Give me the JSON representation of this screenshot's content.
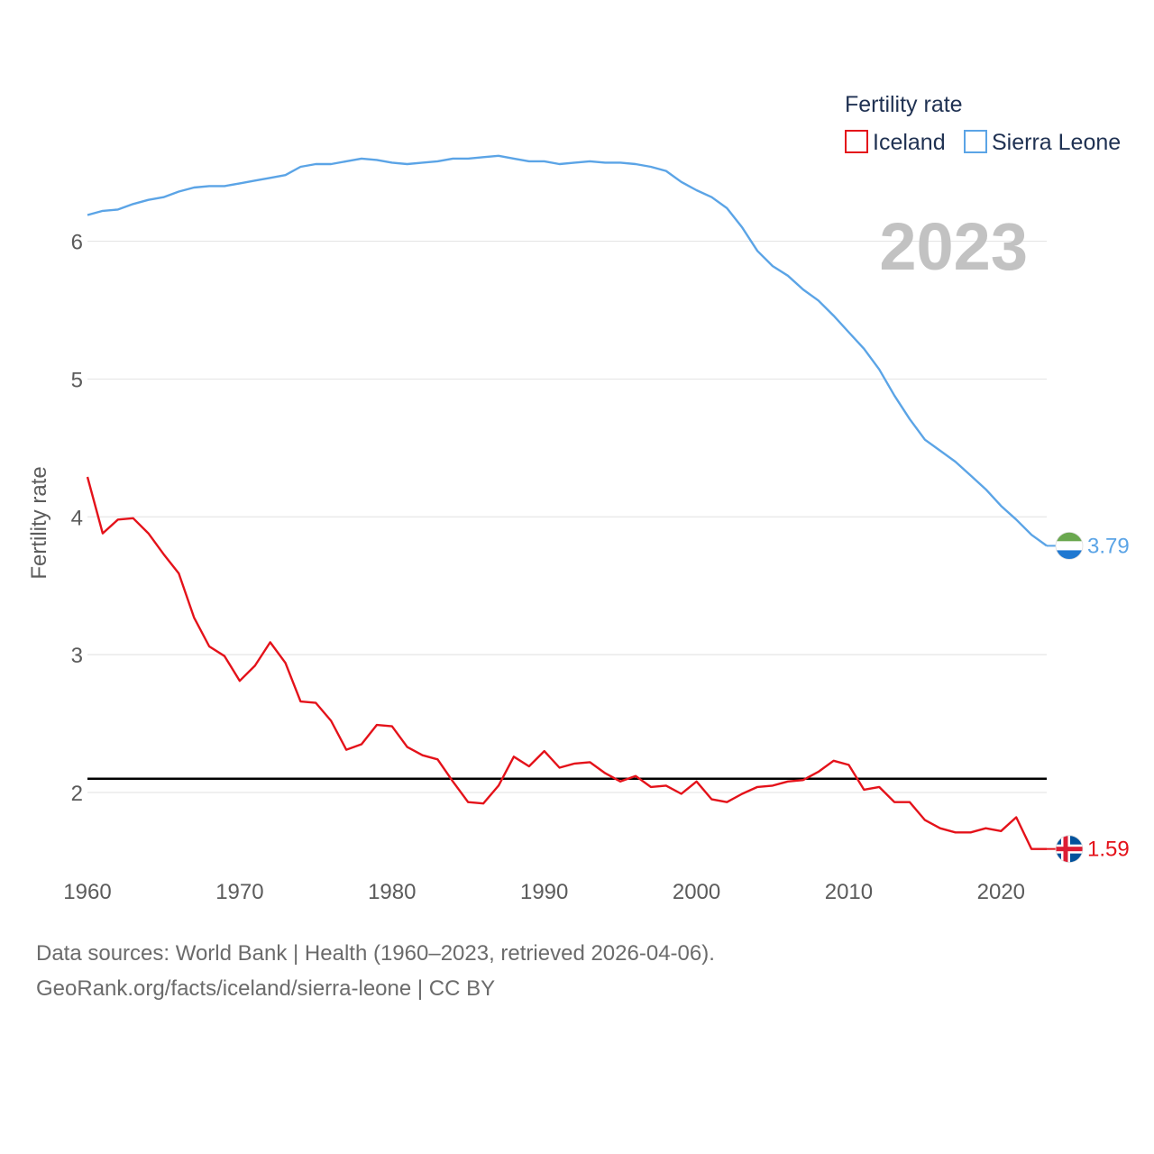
{
  "chart_data": {
    "type": "line",
    "title": "",
    "xlabel": "",
    "ylabel": "Fertility rate",
    "xlim": [
      1960,
      2023
    ],
    "ylim": [
      1.3,
      6.9
    ],
    "x_ticks": [
      1960,
      1970,
      1980,
      1990,
      2000,
      2010,
      2020
    ],
    "y_ticks": [
      2,
      3,
      4,
      5,
      6
    ],
    "reference_line": {
      "value": 2.1,
      "color": "#000000"
    },
    "legend": {
      "title": "Fertility rate",
      "placement": "top-right"
    },
    "year_label": "2023",
    "series": [
      {
        "name": "Iceland",
        "color": "#e4121a",
        "end_label": "1.59",
        "flag": "iceland-flag-icon",
        "x": [
          1960,
          1961,
          1962,
          1963,
          1964,
          1965,
          1966,
          1967,
          1968,
          1969,
          1970,
          1971,
          1972,
          1973,
          1974,
          1975,
          1976,
          1977,
          1978,
          1979,
          1980,
          1981,
          1982,
          1983,
          1984,
          1985,
          1986,
          1987,
          1988,
          1989,
          1990,
          1991,
          1992,
          1993,
          1994,
          1995,
          1996,
          1997,
          1998,
          1999,
          2000,
          2001,
          2002,
          2003,
          2004,
          2005,
          2006,
          2007,
          2008,
          2009,
          2010,
          2011,
          2012,
          2013,
          2014,
          2015,
          2016,
          2017,
          2018,
          2019,
          2020,
          2021,
          2022,
          2023
        ],
        "values": [
          4.29,
          3.88,
          3.98,
          3.99,
          3.88,
          3.73,
          3.59,
          3.27,
          3.06,
          2.99,
          2.81,
          2.92,
          3.09,
          2.94,
          2.66,
          2.65,
          2.52,
          2.31,
          2.35,
          2.49,
          2.48,
          2.33,
          2.27,
          2.24,
          2.08,
          1.93,
          1.92,
          2.05,
          2.26,
          2.19,
          2.3,
          2.18,
          2.21,
          2.22,
          2.14,
          2.08,
          2.12,
          2.04,
          2.05,
          1.99,
          2.08,
          1.95,
          1.93,
          1.99,
          2.04,
          2.05,
          2.08,
          2.09,
          2.15,
          2.23,
          2.2,
          2.02,
          2.04,
          1.93,
          1.93,
          1.8,
          1.74,
          1.71,
          1.71,
          1.74,
          1.72,
          1.82,
          1.59,
          1.59
        ]
      },
      {
        "name": "Sierra Leone",
        "color": "#5ba4e6",
        "end_label": "3.79",
        "flag": "sierra-leone-flag-icon",
        "x": [
          1960,
          1961,
          1962,
          1963,
          1964,
          1965,
          1966,
          1967,
          1968,
          1969,
          1970,
          1971,
          1972,
          1973,
          1974,
          1975,
          1976,
          1977,
          1978,
          1979,
          1980,
          1981,
          1982,
          1983,
          1984,
          1985,
          1986,
          1987,
          1988,
          1989,
          1990,
          1991,
          1992,
          1993,
          1994,
          1995,
          1996,
          1997,
          1998,
          1999,
          2000,
          2001,
          2002,
          2003,
          2004,
          2005,
          2006,
          2007,
          2008,
          2009,
          2010,
          2011,
          2012,
          2013,
          2014,
          2015,
          2016,
          2017,
          2018,
          2019,
          2020,
          2021,
          2022,
          2023
        ],
        "values": [
          6.19,
          6.22,
          6.23,
          6.27,
          6.3,
          6.32,
          6.36,
          6.39,
          6.4,
          6.4,
          6.42,
          6.44,
          6.46,
          6.48,
          6.54,
          6.56,
          6.56,
          6.58,
          6.6,
          6.59,
          6.57,
          6.56,
          6.57,
          6.58,
          6.6,
          6.6,
          6.61,
          6.62,
          6.6,
          6.58,
          6.58,
          6.56,
          6.57,
          6.58,
          6.57,
          6.57,
          6.56,
          6.54,
          6.51,
          6.43,
          6.37,
          6.32,
          6.24,
          6.1,
          5.93,
          5.82,
          5.75,
          5.65,
          5.57,
          5.46,
          5.34,
          5.22,
          5.07,
          4.88,
          4.71,
          4.56,
          4.48,
          4.4,
          4.3,
          4.2,
          4.08,
          3.98,
          3.87,
          3.79
        ]
      }
    ]
  },
  "footer": {
    "source_line": "Data sources: World Bank | Health (1960–2023, retrieved 2026-04-06).",
    "url_line": "GeoRank.org/facts/iceland/sierra-leone | CC BY"
  }
}
